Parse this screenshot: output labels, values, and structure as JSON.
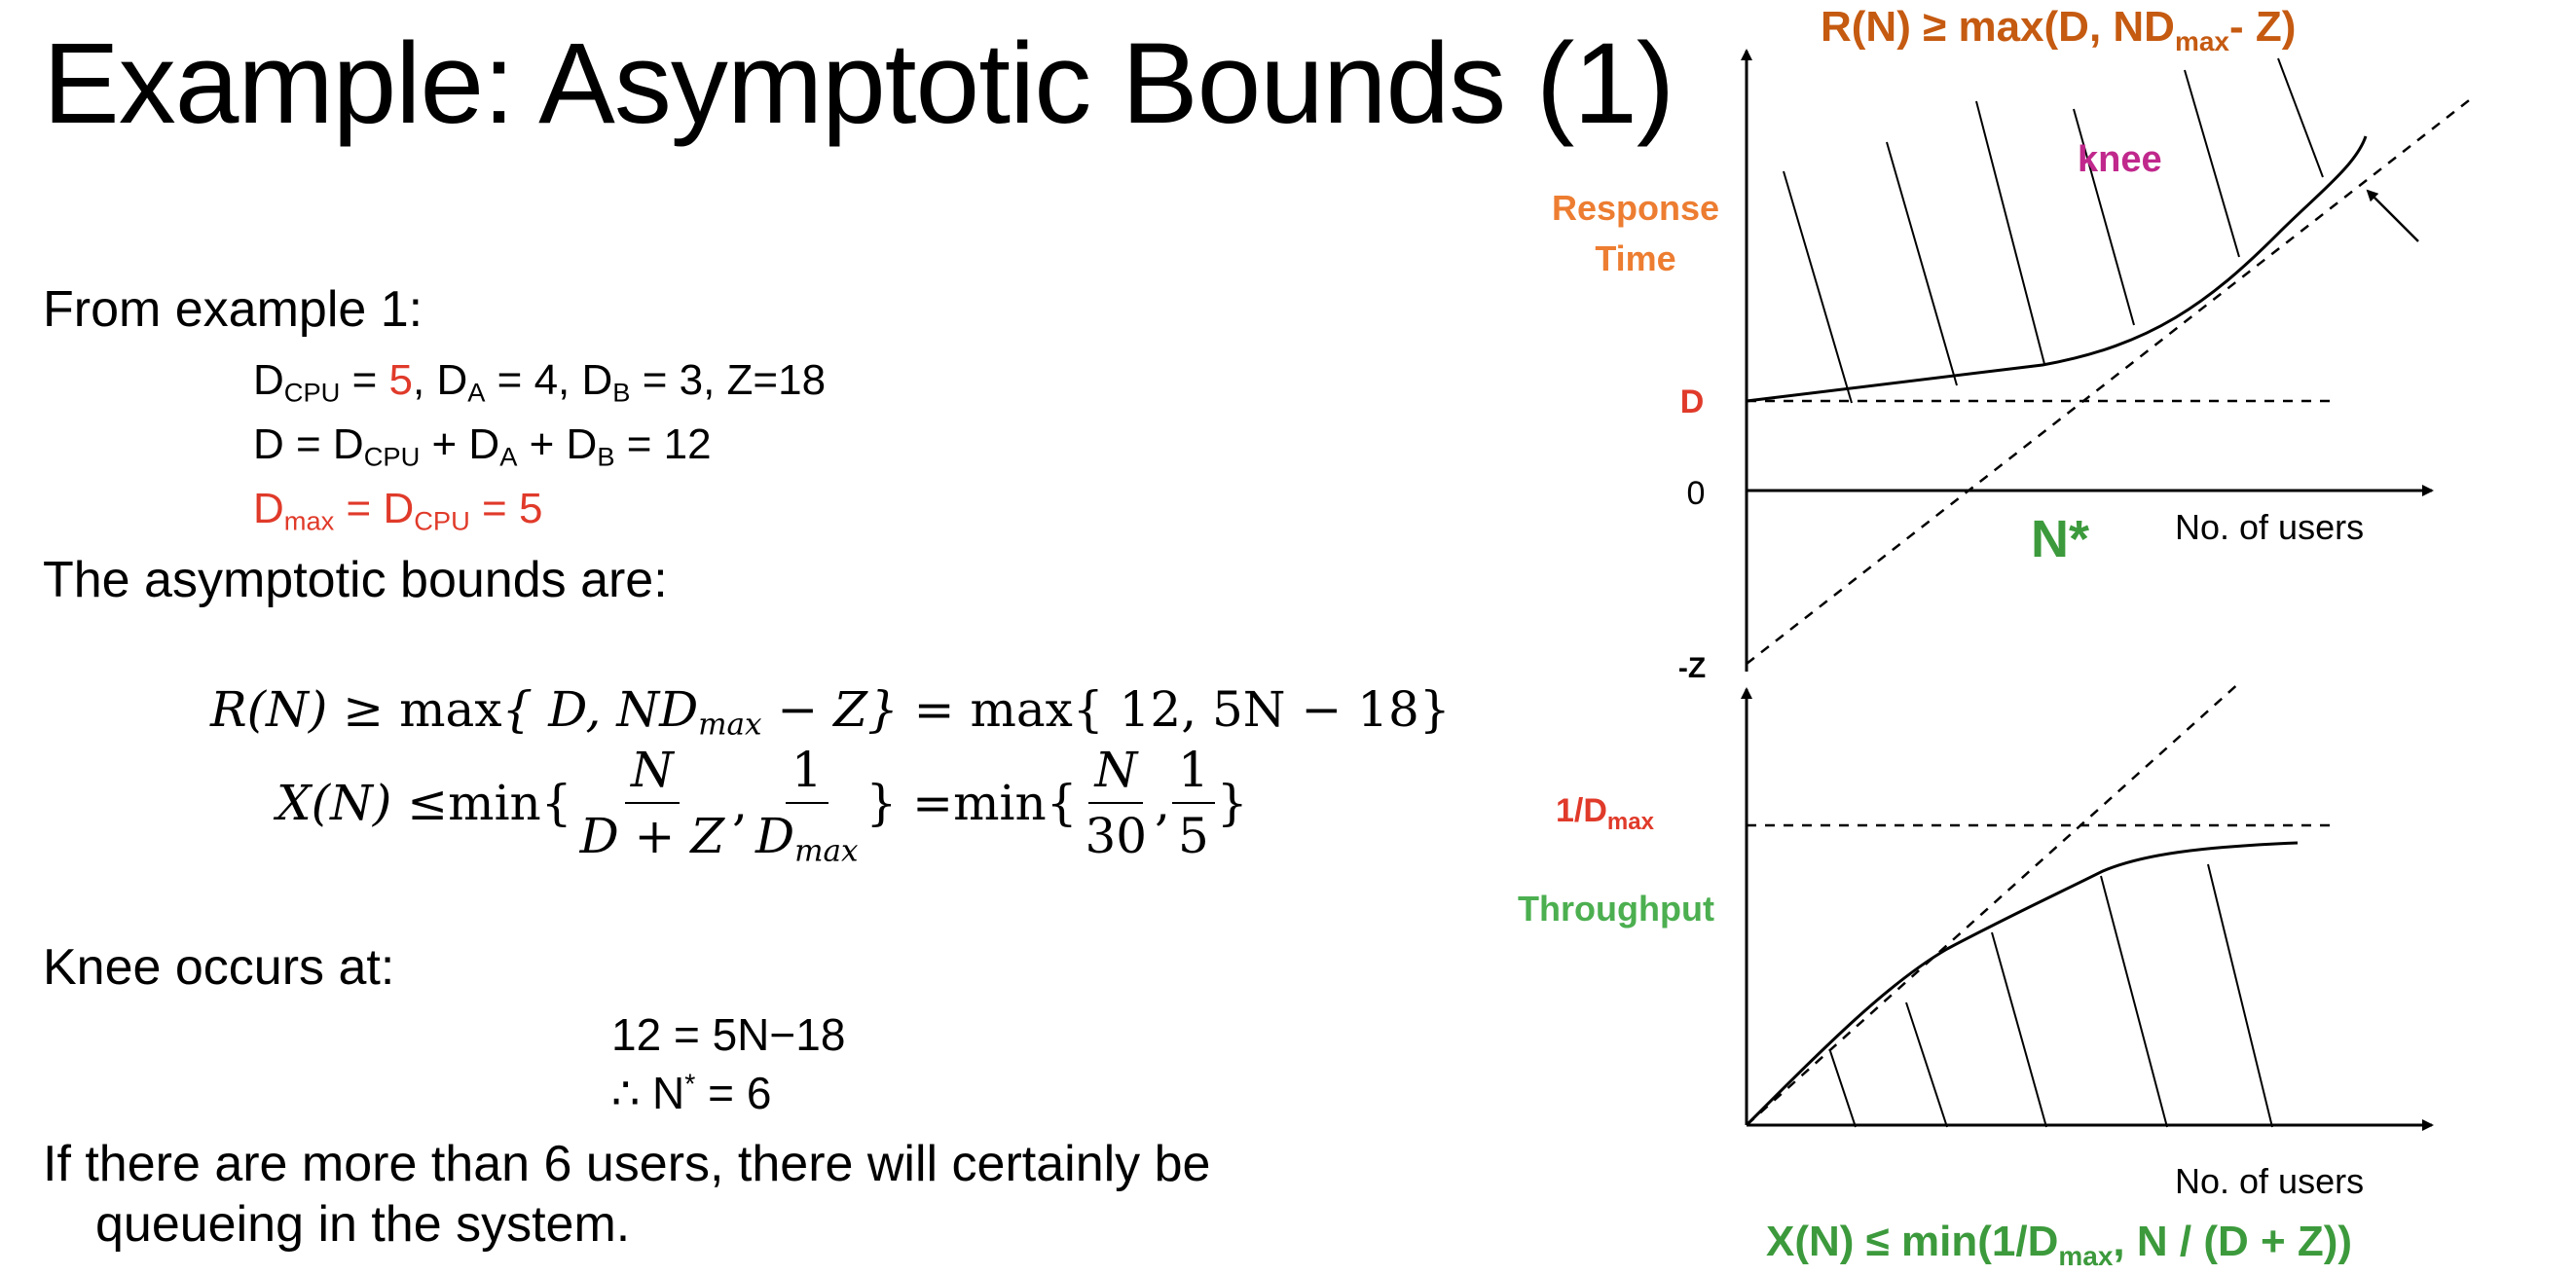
{
  "title": "Example: Asymptotic Bounds (1)",
  "left": {
    "from_example": "From example 1:",
    "line1": {
      "d_cpu": "D",
      "d_cpu_sub": "CPU",
      "eq1": " = ",
      "v_cpu": "5",
      "sep1": ",  ",
      "d_a": "D",
      "d_a_sub": "A",
      "eq2": " = 4,  ",
      "d_b": "D",
      "d_b_sub": "B",
      "eq3": " = 3,  Z=18"
    },
    "line2": {
      "a": "D = D",
      "a_sub": "CPU",
      "b": " + D",
      "b_sub": "A",
      "c": " + D",
      "c_sub": "B",
      "d": " = 12"
    },
    "line3": {
      "a": "D",
      "a_sub": "max",
      "b": " = D",
      "b_sub": "CPU",
      "c": " = 5"
    },
    "asym_heading": "The asymptotic bounds are:",
    "eq_r": {
      "lhs": "R(N) ≥ ",
      "max": "max",
      "inner": "{ D, ND",
      "sub": "max",
      "rest": " − Z} = ",
      "max2": "max",
      "rhs": "{ 12, 5N − 18}"
    },
    "eq_x": {
      "lhs": "X(N) ≤ ",
      "min": "min",
      "open": "{",
      "f1_num": "N",
      "f1_den": "D + Z",
      "comma": ",",
      "f2_num": "1",
      "f2_den": "D",
      "f2_den_sub": "max",
      "close": "} = ",
      "min2": "min",
      "open2": "{",
      "f3_num": "N",
      "f3_den": "30",
      "comma2": ",",
      "f4_num": "1",
      "f4_den": "5",
      "close2": "}"
    },
    "knee_heading": "Knee occurs at:",
    "knee_eq1": "12  =  5N−18",
    "knee_eq2_a": "∴ N",
    "knee_eq2_sup": "*",
    "knee_eq2_b": "  =  6",
    "conclusion_1": "If there are more than 6 users, there will certainly be",
    "conclusion_2": "queueing in the system."
  },
  "chart_data": [
    {
      "type": "line",
      "title": "R(N) ≥ max(D, NDmax- Z)",
      "title_parts": {
        "a": "R(N) ≥ max(D, ND",
        "sub": "max",
        "b": "- Z)"
      },
      "ylabel_1": "Response",
      "ylabel_2": "Time",
      "xlabel": "No. of users",
      "y_ticks": [
        "D",
        "0",
        "-Z"
      ],
      "annotations": [
        "knee",
        "N*"
      ],
      "colors": {
        "title": "#c55a11",
        "ylabel": "#ed7d31",
        "d_tick": "#e03a2a",
        "knee": "#c0288c",
        "nstar": "#3c9a3c"
      }
    },
    {
      "type": "line",
      "title": "X(N) ≤  min(1/Dmax, N / (D + Z))",
      "title_parts": {
        "a": "X(N) ≤  min(1/D",
        "sub": "max",
        "b": ", N / (D + Z))"
      },
      "ylabel": "Throughput",
      "xlabel": "No. of users",
      "y_ticks": [
        "1/Dmax"
      ],
      "y_tick_parts": {
        "a": "1/D",
        "sub": "max"
      },
      "colors": {
        "title": "#3c9a3c",
        "ylabel": "#4caf50",
        "tick": "#e03a2a"
      }
    }
  ]
}
